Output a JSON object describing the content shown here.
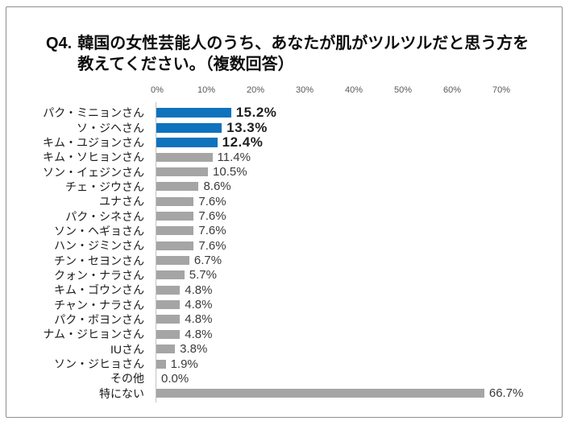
{
  "title": {
    "prefix": "Q4.",
    "line1": "韓国の女性芸能人のうち、あなたが肌がツルツルだと思う方を",
    "line2": "教えてください。（複数回答）"
  },
  "chart_data": {
    "type": "bar",
    "orientation": "horizontal",
    "title": "Q4. 韓国の女性芸能人のうち、あなたが肌がツルツルだと思う方を教えてください。（複数回答）",
    "categories": [
      "パク・ミニョンさん",
      "ソ・ジヘさん",
      "キム・ユジョンさん",
      "キム・ソヒョンさん",
      "ソン・イェジンさん",
      "チェ・ジウさん",
      "ユナさん",
      "パク・シネさん",
      "ソン・ヘギョさん",
      "ハン・ジミンさん",
      "チン・セヨンさん",
      "クォン・ナラさん",
      "キム・ゴウンさん",
      "チャン・ナラさん",
      "パク・ボヨンさん",
      "ナム・ジヒョンさん",
      "IUさん",
      "ソン・ジヒョさん",
      "その他",
      "特にない"
    ],
    "values": [
      15.2,
      13.3,
      12.4,
      11.4,
      10.5,
      8.6,
      7.6,
      7.6,
      7.6,
      7.6,
      6.7,
      5.7,
      4.8,
      4.8,
      4.8,
      4.8,
      3.8,
      1.9,
      0.0,
      66.7
    ],
    "value_labels": [
      "15.2%",
      "13.3%",
      "12.4%",
      "11.4%",
      "10.5%",
      "8.6%",
      "7.6%",
      "7.6%",
      "7.6%",
      "7.6%",
      "6.7%",
      "5.7%",
      "4.8%",
      "4.8%",
      "4.8%",
      "4.8%",
      "3.8%",
      "1.9%",
      "0.0%",
      "66.7%"
    ],
    "highlight_count": 3,
    "x_ticks": [
      "0%",
      "10%",
      "20%",
      "30%",
      "40%",
      "50%",
      "60%",
      "70%"
    ],
    "xlim": [
      0,
      70
    ],
    "grid": false,
    "legend": "none",
    "colors": {
      "highlight_bar": "#0E72BD",
      "normal_bar": "#A5A5A5"
    }
  }
}
